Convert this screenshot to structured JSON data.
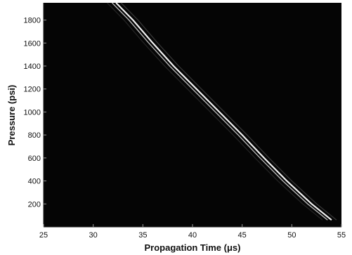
{
  "chart_data": {
    "type": "heatmap",
    "title": "",
    "xlabel": "Propagation Time (μs)",
    "ylabel": "Pressure (psi)",
    "xlim": [
      25,
      55
    ],
    "ylim": [
      0,
      1950
    ],
    "x_ticks": [
      25,
      30,
      35,
      40,
      45,
      50,
      55
    ],
    "y_ticks": [
      200,
      400,
      600,
      800,
      1000,
      1200,
      1400,
      1600,
      1800
    ],
    "grid": false,
    "colors": {
      "background": "#050505",
      "ridge": "#f2f2f2",
      "faint": "#5a5a5a"
    },
    "ridges": [
      {
        "name": "",
        "intensity": 1.0,
        "points": [
          [
            32.3,
            1950
          ],
          [
            34.0,
            1800
          ],
          [
            36.0,
            1600
          ],
          [
            38.1,
            1400
          ],
          [
            40.4,
            1200
          ],
          [
            42.7,
            1000
          ],
          [
            45.0,
            800
          ],
          [
            47.2,
            600
          ],
          [
            49.5,
            400
          ],
          [
            52.0,
            200
          ],
          [
            54.0,
            60
          ]
        ]
      },
      {
        "name": "",
        "intensity": 0.75,
        "points": [
          [
            31.9,
            1950
          ],
          [
            33.6,
            1800
          ],
          [
            35.6,
            1600
          ],
          [
            37.7,
            1400
          ],
          [
            40.0,
            1200
          ],
          [
            42.3,
            1000
          ],
          [
            44.6,
            800
          ],
          [
            46.8,
            600
          ],
          [
            49.1,
            400
          ],
          [
            51.6,
            200
          ],
          [
            53.6,
            60
          ]
        ]
      },
      {
        "name": "",
        "intensity": 0.55,
        "points": [
          [
            32.8,
            1950
          ],
          [
            34.5,
            1800
          ],
          [
            36.5,
            1600
          ],
          [
            38.6,
            1400
          ],
          [
            40.9,
            1200
          ],
          [
            43.2,
            1000
          ],
          [
            45.5,
            800
          ],
          [
            47.7,
            600
          ],
          [
            50.0,
            400
          ],
          [
            52.5,
            200
          ],
          [
            54.5,
            60
          ]
        ]
      },
      {
        "name": "",
        "intensity": 0.35,
        "points": [
          [
            31.4,
            1950
          ],
          [
            33.1,
            1800
          ],
          [
            35.1,
            1600
          ],
          [
            37.2,
            1400
          ],
          [
            39.5,
            1200
          ],
          [
            41.8,
            1000
          ],
          [
            44.1,
            800
          ],
          [
            46.3,
            600
          ],
          [
            48.6,
            400
          ],
          [
            51.1,
            200
          ],
          [
            53.1,
            60
          ]
        ]
      }
    ]
  }
}
